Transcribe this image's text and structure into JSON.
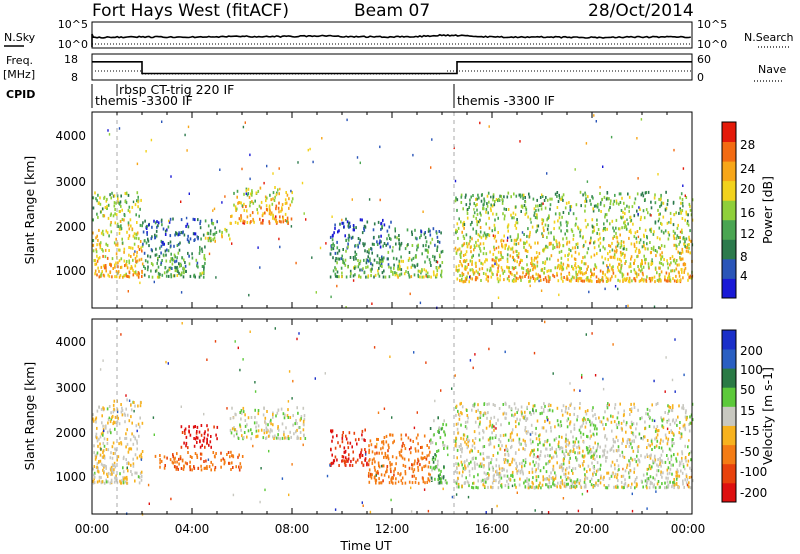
{
  "header": {
    "title": "Fort Hays West (fitACF)",
    "beam": "Beam 07",
    "date": "28/Oct/2014"
  },
  "noise_panel": {
    "left_label": "N.Sky",
    "right_label": "N.Search",
    "left_ticks": [
      "10^5",
      "10^0"
    ],
    "right_ticks": [
      "10^5",
      "10^0"
    ]
  },
  "freq_panel": {
    "left_label": "Freq.",
    "left_unit": "[MHz]",
    "right_label": "Nave",
    "left_ticks": [
      "18",
      "8"
    ],
    "right_ticks": [
      "60",
      "0"
    ]
  },
  "cpid": {
    "label": "CPID",
    "segments": [
      {
        "text": "themis -3300 IF",
        "start_hour": 0.0
      },
      {
        "text": "rbsp CT-trig 220 IF",
        "start_hour": 1.0
      },
      {
        "text": "themis -3300 IF",
        "start_hour": 14.5
      }
    ]
  },
  "x_axis": {
    "label": "Time UT",
    "ticks": [
      "00:00",
      "04:00",
      "08:00",
      "12:00",
      "16:00",
      "20:00",
      "00:00"
    ]
  },
  "power_panel": {
    "ylabel": "Slant Range [km]",
    "yticks": [
      "4000",
      "3000",
      "2000",
      "1000"
    ],
    "colorbar_label": "Power [dB]",
    "colorbar_ticks": [
      "28",
      "24",
      "20",
      "16",
      "12",
      "8",
      "4"
    ]
  },
  "velocity_panel": {
    "ylabel": "Slant Range [km]",
    "yticks": [
      "4000",
      "3000",
      "2000",
      "1000"
    ],
    "colorbar_label": "Velocity [m s-1]",
    "colorbar_ticks": [
      "200",
      "100",
      "50",
      "15",
      "-15",
      "-50",
      "-100",
      "-200"
    ]
  },
  "colors": {
    "power_scale": [
      "#1a1ad6",
      "#2a55b8",
      "#2c7a4c",
      "#4aa552",
      "#8fcf3a",
      "#f2d21c",
      "#f7a618",
      "#f36b12",
      "#e41a0a"
    ],
    "velocity_scale": [
      "#1a2fc9",
      "#2a5fc2",
      "#2a7a45",
      "#5cc93a",
      "#c8c8c0",
      "#f7b21e",
      "#f47c14",
      "#e8420c",
      "#de1010"
    ]
  },
  "chart_data": [
    {
      "type": "line",
      "title": "Fort Hays West (fitACF)",
      "panel": "noise",
      "x_unit": "hours UT",
      "x": [
        0,
        2,
        4,
        6,
        8,
        9.5,
        10,
        12,
        13.5,
        14,
        16,
        18,
        20,
        22,
        24
      ],
      "series": [
        {
          "name": "N.Sky",
          "values": [
            2.1,
            2.2,
            2.2,
            2.3,
            2.3,
            2.5,
            2.3,
            2.2,
            2.4,
            2.6,
            2.2,
            2.2,
            2.1,
            2.2,
            2.2
          ]
        }
      ]
    },
    {
      "type": "line",
      "panel": "frequency",
      "x_unit": "hours UT",
      "ylim": [
        8,
        18
      ],
      "x": [
        0,
        0.3,
        2,
        4,
        8,
        12,
        13.8,
        14.6,
        16,
        20,
        24
      ],
      "series": [
        {
          "name": "Freq.",
          "values": [
            15,
            15,
            10.5,
            10.5,
            10.5,
            10.5,
            10.5,
            15,
            15,
            15,
            15
          ]
        }
      ]
    },
    {
      "type": "heatmap",
      "panel": "power",
      "title": "Power [dB]",
      "xlabel": "Time UT",
      "ylabel": "Slant Range [km]",
      "xlim": [
        0,
        24
      ],
      "ylim": [
        180,
        4550
      ],
      "zlim": [
        0,
        30
      ],
      "features": [
        {
          "t0": 0.0,
          "t1": 2.0,
          "r0": 900,
          "r1": 2800,
          "level": 18
        },
        {
          "t0": 2.0,
          "t1": 4.5,
          "r0": 900,
          "r1": 2200,
          "level": 10
        },
        {
          "t0": 4.5,
          "t1": 5.5,
          "r0": 1700,
          "r1": 2200,
          "level": 14
        },
        {
          "t0": 5.5,
          "t1": 8.0,
          "r0": 2100,
          "r1": 2900,
          "level": 20
        },
        {
          "t0": 9.5,
          "t1": 12.0,
          "r0": 900,
          "r1": 2200,
          "level": 10
        },
        {
          "t0": 12.0,
          "t1": 14.0,
          "r0": 900,
          "r1": 2000,
          "level": 13
        },
        {
          "t0": 14.5,
          "t1": 24.0,
          "r0": 800,
          "r1": 2800,
          "level": 17
        }
      ]
    },
    {
      "type": "heatmap",
      "panel": "velocity",
      "title": "Velocity [m s-1]",
      "xlabel": "Time UT",
      "ylabel": "Slant Range [km]",
      "xlim": [
        0,
        24
      ],
      "ylim": [
        180,
        4550
      ],
      "zlim": [
        -250,
        250
      ],
      "features": [
        {
          "t0": 0.0,
          "t1": 2.0,
          "r0": 900,
          "r1": 2800,
          "level": -10
        },
        {
          "t0": 3.5,
          "t1": 5.0,
          "r0": 1700,
          "r1": 2200,
          "level": -220
        },
        {
          "t0": 2.5,
          "t1": 6.0,
          "r0": 1200,
          "r1": 1600,
          "level": -90
        },
        {
          "t0": 5.5,
          "t1": 8.5,
          "r0": 1900,
          "r1": 2600,
          "level": 0
        },
        {
          "t0": 9.5,
          "t1": 11.0,
          "r0": 1300,
          "r1": 2100,
          "level": -200
        },
        {
          "t0": 11.0,
          "t1": 13.5,
          "r0": 900,
          "r1": 2000,
          "level": -80
        },
        {
          "t0": 13.5,
          "t1": 14.2,
          "r0": 900,
          "r1": 2400,
          "level": 30
        },
        {
          "t0": 14.5,
          "t1": 24.0,
          "r0": 800,
          "r1": 2700,
          "level": 0
        }
      ]
    }
  ]
}
